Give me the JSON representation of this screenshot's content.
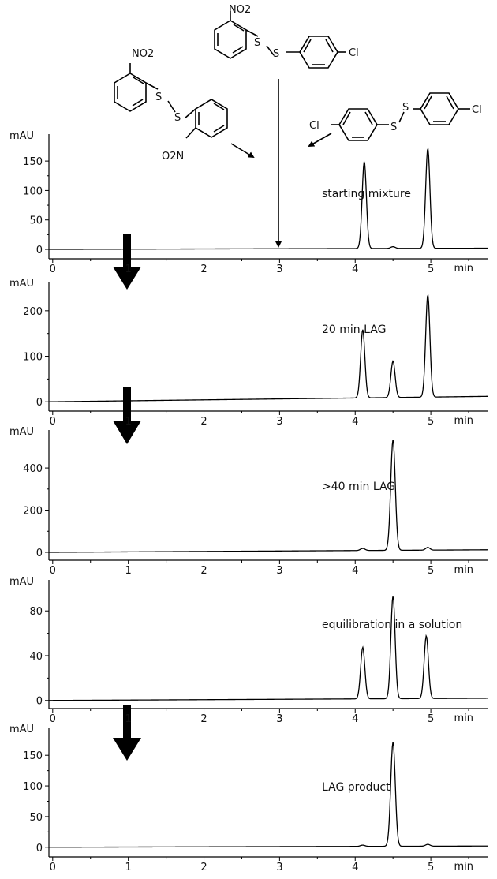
{
  "figure": {
    "structures": {
      "a": {
        "labels": [
          "NO2",
          "O2N",
          "S",
          "S"
        ]
      },
      "b": {
        "labels": [
          "NO2",
          "S",
          "S",
          "Cl"
        ]
      },
      "c": {
        "labels": [
          "Cl",
          "S",
          "S",
          "Cl"
        ]
      }
    }
  },
  "chart_data": [
    {
      "type": "line",
      "title": "",
      "annotation": "starting mixture",
      "xlabel": "min",
      "ylabel": "mAU",
      "xlim": [
        -0.05,
        5.75
      ],
      "ylim": [
        -8,
        185
      ],
      "x_ticks": [
        0,
        1,
        2,
        3,
        4,
        5
      ],
      "y_ticks": [
        0,
        50,
        100,
        150
      ],
      "baseline": {
        "start": 0,
        "end": 2
      },
      "peaks": [
        {
          "x": 4.12,
          "height": 148,
          "width": 0.028
        },
        {
          "x": 4.5,
          "height": 3,
          "width": 0.03
        },
        {
          "x": 4.96,
          "height": 170,
          "width": 0.028
        }
      ],
      "legend": "none",
      "grid": false
    },
    {
      "type": "line",
      "title": "",
      "annotation": "20 min LAG",
      "xlabel": "min",
      "ylabel": "mAU",
      "xlim": [
        -0.05,
        5.75
      ],
      "ylim": [
        -10,
        250
      ],
      "x_ticks": [
        0,
        1,
        2,
        3,
        4,
        5
      ],
      "y_ticks": [
        0,
        100,
        200
      ],
      "baseline": {
        "start": 0,
        "end": 12
      },
      "peaks": [
        {
          "x": 4.1,
          "height": 150,
          "width": 0.028
        },
        {
          "x": 4.5,
          "height": 80,
          "width": 0.028
        },
        {
          "x": 4.96,
          "height": 225,
          "width": 0.028
        }
      ],
      "legend": "none",
      "grid": false
    },
    {
      "type": "line",
      "title": "",
      "annotation": ">40 min LAG",
      "xlabel": "min",
      "ylabel": "mAU",
      "xlim": [
        -0.05,
        5.75
      ],
      "ylim": [
        -15,
        550
      ],
      "x_ticks": [
        0,
        1,
        2,
        3,
        4,
        5
      ],
      "y_ticks": [
        0,
        200,
        400
      ],
      "baseline": {
        "start": 0,
        "end": 12
      },
      "peaks": [
        {
          "x": 4.1,
          "height": 10,
          "width": 0.03
        },
        {
          "x": 4.5,
          "height": 525,
          "width": 0.03
        },
        {
          "x": 4.96,
          "height": 13,
          "width": 0.028
        }
      ],
      "legend": "none",
      "grid": false
    },
    {
      "type": "line",
      "title": "",
      "annotation": "equilibration in a solution",
      "xlabel": "min",
      "ylabel": "mAU",
      "xlim": [
        -0.05,
        5.75
      ],
      "ylim": [
        -3,
        102
      ],
      "x_ticks": [
        0,
        1,
        2,
        3,
        4,
        5
      ],
      "y_ticks": [
        0,
        40,
        80
      ],
      "baseline": {
        "start": 0,
        "end": 2
      },
      "peaks": [
        {
          "x": 4.1,
          "height": 46,
          "width": 0.028
        },
        {
          "x": 4.5,
          "height": 92,
          "width": 0.028
        },
        {
          "x": 4.94,
          "height": 56,
          "width": 0.028
        }
      ],
      "legend": "none",
      "grid": false
    },
    {
      "type": "line",
      "title": "",
      "annotation": "LAG product",
      "xlabel": "min",
      "ylabel": "mAU",
      "xlim": [
        -0.05,
        5.75
      ],
      "ylim": [
        -8,
        185
      ],
      "x_ticks": [
        0,
        1,
        2,
        3,
        4,
        5
      ],
      "y_ticks": [
        0,
        50,
        100,
        150
      ],
      "baseline": {
        "start": 0,
        "end": 2
      },
      "peaks": [
        {
          "x": 4.1,
          "height": 2,
          "width": 0.03
        },
        {
          "x": 4.5,
          "height": 170,
          "width": 0.03
        },
        {
          "x": 4.96,
          "height": 3,
          "width": 0.03
        }
      ],
      "legend": "none",
      "grid": false
    }
  ]
}
